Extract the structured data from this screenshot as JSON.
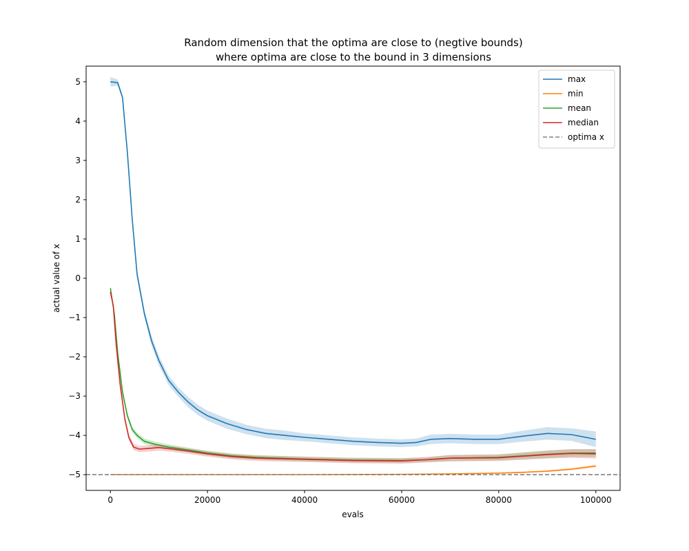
{
  "chart_data": {
    "type": "line",
    "title": [
      "Random dimension that the optima are close to (negtive bounds)",
      "where optima are close to the bound in 3 dimensions"
    ],
    "xlabel": "evals",
    "ylabel": "actual value of x",
    "xlim": [
      -5000,
      105000
    ],
    "ylim": [
      -5.4,
      5.4
    ],
    "xticks": [
      0,
      20000,
      40000,
      60000,
      80000,
      100000
    ],
    "xtick_labels": [
      "0",
      "20000",
      "40000",
      "60000",
      "80000",
      "100000"
    ],
    "yticks": [
      5,
      4,
      3,
      2,
      1,
      0,
      -1,
      -2,
      -3,
      -4,
      -5
    ],
    "ytick_labels": [
      "5",
      "4",
      "3",
      "2",
      "1",
      "0",
      "−1",
      "−2",
      "−3",
      "−4",
      "−5"
    ],
    "legend_position": "top-right",
    "series": [
      {
        "name": "max",
        "color": "#1f77b4",
        "points": [
          [
            0,
            5.0
          ],
          [
            1500,
            4.98
          ],
          [
            2500,
            4.6
          ],
          [
            3500,
            3.2
          ],
          [
            4500,
            1.5
          ],
          [
            5500,
            0.1
          ],
          [
            7000,
            -0.9
          ],
          [
            8500,
            -1.6
          ],
          [
            10000,
            -2.1
          ],
          [
            12000,
            -2.6
          ],
          [
            14000,
            -2.9
          ],
          [
            16000,
            -3.15
          ],
          [
            18000,
            -3.35
          ],
          [
            20000,
            -3.5
          ],
          [
            24000,
            -3.7
          ],
          [
            28000,
            -3.85
          ],
          [
            32000,
            -3.95
          ],
          [
            36000,
            -4.0
          ],
          [
            40000,
            -4.05
          ],
          [
            45000,
            -4.1
          ],
          [
            50000,
            -4.15
          ],
          [
            55000,
            -4.18
          ],
          [
            60000,
            -4.2
          ],
          [
            63000,
            -4.18
          ],
          [
            66000,
            -4.1
          ],
          [
            70000,
            -4.08
          ],
          [
            75000,
            -4.1
          ],
          [
            80000,
            -4.1
          ],
          [
            85000,
            -4.02
          ],
          [
            90000,
            -3.95
          ],
          [
            95000,
            -3.98
          ],
          [
            100000,
            -4.1
          ]
        ],
        "band": [
          0.12,
          0.08,
          0.05,
          0.08,
          0.1,
          0.1,
          0.1,
          0.12,
          0.12,
          0.12,
          0.12,
          0.13,
          0.13,
          0.13,
          0.13,
          0.12,
          0.12,
          0.12,
          0.1,
          0.1,
          0.1,
          0.1,
          0.1,
          0.1,
          0.12,
          0.12,
          0.12,
          0.12,
          0.14,
          0.16,
          0.16,
          0.2
        ]
      },
      {
        "name": "min",
        "color": "#ff7f0e",
        "points": [
          [
            0,
            -5.0
          ],
          [
            20000,
            -5.0
          ],
          [
            40000,
            -5.0
          ],
          [
            60000,
            -4.99
          ],
          [
            70000,
            -4.98
          ],
          [
            80000,
            -4.96
          ],
          [
            85000,
            -4.94
          ],
          [
            90000,
            -4.91
          ],
          [
            95000,
            -4.86
          ],
          [
            100000,
            -4.78
          ]
        ],
        "band": [
          0.01,
          0.01,
          0.01,
          0.01,
          0.01,
          0.015,
          0.02,
          0.02,
          0.025,
          0.04
        ]
      },
      {
        "name": "mean",
        "color": "#2ca02c",
        "points": [
          [
            0,
            -0.25
          ],
          [
            800,
            -0.9
          ],
          [
            1500,
            -1.9
          ],
          [
            2500,
            -2.9
          ],
          [
            3500,
            -3.5
          ],
          [
            4500,
            -3.85
          ],
          [
            5500,
            -4.0
          ],
          [
            7000,
            -4.15
          ],
          [
            9000,
            -4.22
          ],
          [
            12000,
            -4.3
          ],
          [
            16000,
            -4.37
          ],
          [
            20000,
            -4.45
          ],
          [
            25000,
            -4.52
          ],
          [
            30000,
            -4.56
          ],
          [
            40000,
            -4.6
          ],
          [
            50000,
            -4.63
          ],
          [
            60000,
            -4.64
          ],
          [
            65000,
            -4.62
          ],
          [
            70000,
            -4.58
          ],
          [
            80000,
            -4.56
          ],
          [
            85000,
            -4.52
          ],
          [
            90000,
            -4.48
          ],
          [
            95000,
            -4.45
          ],
          [
            100000,
            -4.45
          ]
        ],
        "band": [
          0.04,
          0.05,
          0.06,
          0.07,
          0.07,
          0.07,
          0.07,
          0.07,
          0.07,
          0.07,
          0.06,
          0.06,
          0.06,
          0.06,
          0.06,
          0.06,
          0.06,
          0.06,
          0.08,
          0.08,
          0.09,
          0.1,
          0.1,
          0.1
        ]
      },
      {
        "name": "median",
        "color": "#d62728",
        "points": [
          [
            0,
            -0.35
          ],
          [
            600,
            -0.7
          ],
          [
            1200,
            -1.7
          ],
          [
            2000,
            -2.7
          ],
          [
            3000,
            -3.6
          ],
          [
            3800,
            -4.05
          ],
          [
            4800,
            -4.3
          ],
          [
            6000,
            -4.35
          ],
          [
            8000,
            -4.33
          ],
          [
            10000,
            -4.31
          ],
          [
            13000,
            -4.35
          ],
          [
            16000,
            -4.4
          ],
          [
            20000,
            -4.47
          ],
          [
            25000,
            -4.54
          ],
          [
            30000,
            -4.58
          ],
          [
            40000,
            -4.61
          ],
          [
            50000,
            -4.64
          ],
          [
            60000,
            -4.65
          ],
          [
            65000,
            -4.62
          ],
          [
            70000,
            -4.58
          ],
          [
            80000,
            -4.57
          ],
          [
            85000,
            -4.53
          ],
          [
            90000,
            -4.49
          ],
          [
            95000,
            -4.46
          ],
          [
            100000,
            -4.47
          ]
        ],
        "band": [
          0.05,
          0.06,
          0.07,
          0.08,
          0.08,
          0.08,
          0.08,
          0.08,
          0.08,
          0.08,
          0.07,
          0.07,
          0.07,
          0.07,
          0.07,
          0.07,
          0.07,
          0.07,
          0.07,
          0.08,
          0.08,
          0.09,
          0.1,
          0.11,
          0.12
        ]
      },
      {
        "name": "optima x",
        "color": "#808080",
        "dashed": true,
        "y": -5.0
      }
    ]
  }
}
